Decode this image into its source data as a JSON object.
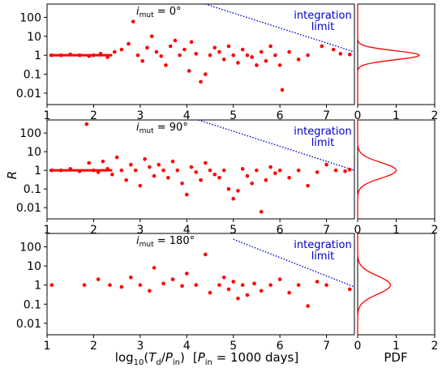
{
  "figure": {
    "xlabel": "log₁₀(T_d/P_in)  [P_in = 1000 days]",
    "xlabel_parts": {
      "log": "log",
      "sub10": "10",
      "open": "(",
      "T": "T",
      "d": "d",
      "slash": "/",
      "P": "P",
      "in": "in",
      "close": ")",
      "bracket": "[",
      "P2": "P",
      "in2": "in",
      "rest": " = 1000 days]"
    },
    "ylabel": "R",
    "pdf_label": "PDF",
    "integration_label_line1": "integration",
    "integration_label_line2": "limit",
    "colors": {
      "points": "#ff0000",
      "limit": "#0000cc",
      "pdf": "#ff0000"
    }
  },
  "chart_data": [
    {
      "type": "scatter",
      "panel": "top",
      "annotation": {
        "symbol": "i",
        "sub": "mut",
        "text": " = 0°"
      },
      "xlim": [
        1,
        7.6
      ],
      "ylim_log10": [
        -2.6,
        2.7
      ],
      "xticks": [
        "1",
        "2",
        "3",
        "4",
        "5",
        "6",
        "7"
      ],
      "yticks": [
        "100",
        "10",
        "1",
        "0.1",
        "0.01"
      ],
      "integration_limit": {
        "x": [
          4.4,
          7.6
        ],
        "y": [
          500,
          1.5
        ]
      },
      "points": [
        [
          1.1,
          1.0
        ],
        [
          1.3,
          1.0
        ],
        [
          1.5,
          1.1
        ],
        [
          1.7,
          1.0
        ],
        [
          1.9,
          0.9
        ],
        [
          2.0,
          1.0
        ],
        [
          2.15,
          1.2
        ],
        [
          2.3,
          0.8
        ],
        [
          2.45,
          1.5
        ],
        [
          2.6,
          2.0
        ],
        [
          2.75,
          4.0
        ],
        [
          2.85,
          60
        ],
        [
          2.95,
          1.0
        ],
        [
          3.05,
          0.5
        ],
        [
          3.15,
          2.5
        ],
        [
          3.25,
          10
        ],
        [
          3.35,
          1.5
        ],
        [
          3.45,
          0.9
        ],
        [
          3.55,
          0.3
        ],
        [
          3.65,
          3.0
        ],
        [
          3.75,
          6.0
        ],
        [
          3.85,
          1.0
        ],
        [
          3.95,
          2.0
        ],
        [
          4.05,
          0.15
        ],
        [
          4.1,
          5.0
        ],
        [
          4.2,
          1.2
        ],
        [
          4.3,
          0.04
        ],
        [
          4.4,
          0.1
        ],
        [
          4.5,
          1.0
        ],
        [
          4.6,
          2.5
        ],
        [
          4.7,
          1.5
        ],
        [
          4.8,
          0.6
        ],
        [
          4.9,
          3.0
        ],
        [
          5.0,
          1.0
        ],
        [
          5.1,
          0.4
        ],
        [
          5.2,
          2.0
        ],
        [
          5.3,
          1.0
        ],
        [
          5.4,
          0.8
        ],
        [
          5.5,
          0.3
        ],
        [
          5.6,
          1.5
        ],
        [
          5.7,
          0.5
        ],
        [
          5.8,
          3.0
        ],
        [
          5.9,
          1.0
        ],
        [
          6.0,
          0.3
        ],
        [
          6.05,
          0.015
        ],
        [
          6.2,
          1.5
        ],
        [
          6.4,
          0.6
        ],
        [
          6.6,
          1.0
        ],
        [
          6.9,
          3.0
        ],
        [
          7.15,
          2.0
        ],
        [
          7.3,
          1.2
        ],
        [
          7.5,
          1.1
        ]
      ],
      "pdf": {
        "xlim": [
          0,
          2
        ],
        "xticks": [
          "0",
          "1",
          "2"
        ],
        "peak": 1.6,
        "center_log10": 0.0,
        "sigma_log10": 0.24
      }
    },
    {
      "type": "scatter",
      "panel": "middle",
      "annotation": {
        "symbol": "i",
        "sub": "mut",
        "text": " = 90°"
      },
      "xlim": [
        1,
        7.6
      ],
      "ylim_log10": [
        -2.6,
        2.7
      ],
      "xticks": [
        "1",
        "2",
        "3",
        "4",
        "5",
        "6",
        "7"
      ],
      "yticks": [
        "100",
        "10",
        "1",
        "0.1",
        "0.01"
      ],
      "integration_limit": {
        "x": [
          4.25,
          7.6
        ],
        "y": [
          500,
          1.0
        ]
      },
      "points": [
        [
          1.1,
          1.0
        ],
        [
          1.3,
          1.0
        ],
        [
          1.5,
          1.2
        ],
        [
          1.7,
          0.9
        ],
        [
          1.85,
          300
        ],
        [
          1.9,
          2.5
        ],
        [
          2.0,
          1.0
        ],
        [
          2.1,
          0.8
        ],
        [
          2.2,
          3.0
        ],
        [
          2.3,
          1.2
        ],
        [
          2.4,
          0.6
        ],
        [
          2.5,
          5.0
        ],
        [
          2.6,
          1.0
        ],
        [
          2.7,
          0.3
        ],
        [
          2.8,
          2.0
        ],
        [
          2.9,
          1.0
        ],
        [
          3.0,
          0.15
        ],
        [
          3.1,
          4.0
        ],
        [
          3.2,
          1.5
        ],
        [
          3.3,
          0.5
        ],
        [
          3.4,
          2.0
        ],
        [
          3.5,
          1.0
        ],
        [
          3.6,
          0.4
        ],
        [
          3.7,
          3.0
        ],
        [
          3.8,
          1.0
        ],
        [
          3.9,
          0.2
        ],
        [
          4.0,
          0.05
        ],
        [
          4.1,
          1.5
        ],
        [
          4.2,
          0.8
        ],
        [
          4.3,
          0.3
        ],
        [
          4.4,
          2.5
        ],
        [
          4.5,
          1.0
        ],
        [
          4.6,
          0.6
        ],
        [
          4.7,
          0.4
        ],
        [
          4.8,
          1.0
        ],
        [
          4.9,
          0.1
        ],
        [
          5.0,
          0.03
        ],
        [
          5.1,
          0.08
        ],
        [
          5.2,
          1.2
        ],
        [
          5.3,
          0.5
        ],
        [
          5.4,
          0.2
        ],
        [
          5.5,
          1.0
        ],
        [
          5.6,
          0.006
        ],
        [
          5.7,
          0.3
        ],
        [
          5.8,
          1.5
        ],
        [
          5.9,
          0.7
        ],
        [
          6.0,
          1.0
        ],
        [
          6.2,
          0.4
        ],
        [
          6.4,
          1.0
        ],
        [
          6.6,
          0.15
        ],
        [
          6.8,
          0.8
        ],
        [
          7.0,
          2.0
        ],
        [
          7.2,
          1.0
        ],
        [
          7.4,
          0.9
        ],
        [
          7.5,
          1.1
        ]
      ],
      "pdf": {
        "xlim": [
          0,
          2
        ],
        "xticks": [
          "0",
          "1",
          "2"
        ],
        "peak": 1.0,
        "center_log10": 0.0,
        "sigma_log10": 0.42
      }
    },
    {
      "type": "scatter",
      "panel": "bottom",
      "annotation": {
        "symbol": "i",
        "sub": "mut",
        "text": " = 180°"
      },
      "xlim": [
        1,
        7.6
      ],
      "ylim_log10": [
        -2.6,
        2.7
      ],
      "xticks": [
        "1",
        "2",
        "3",
        "4",
        "5",
        "6",
        "7"
      ],
      "yticks": [
        "100",
        "10",
        "1",
        "0.1",
        "0.01"
      ],
      "integration_limit": {
        "x": [
          5.0,
          7.6
        ],
        "y": [
          250,
          0.8
        ]
      },
      "points": [
        [
          1.1,
          1.0
        ],
        [
          1.8,
          1.0
        ],
        [
          2.1,
          2.0
        ],
        [
          2.35,
          1.0
        ],
        [
          2.6,
          0.8
        ],
        [
          2.8,
          2.5
        ],
        [
          3.0,
          1.0
        ],
        [
          3.2,
          0.5
        ],
        [
          3.3,
          8.0
        ],
        [
          3.5,
          1.2
        ],
        [
          3.7,
          2.0
        ],
        [
          3.9,
          0.9
        ],
        [
          4.0,
          4.0
        ],
        [
          4.2,
          1.0
        ],
        [
          4.4,
          40
        ],
        [
          4.5,
          0.4
        ],
        [
          4.7,
          1.0
        ],
        [
          4.8,
          2.5
        ],
        [
          4.9,
          0.6
        ],
        [
          5.0,
          1.5
        ],
        [
          5.1,
          0.2
        ],
        [
          5.2,
          1.0
        ],
        [
          5.3,
          0.3
        ],
        [
          5.45,
          1.2
        ],
        [
          5.6,
          0.5
        ],
        [
          5.8,
          1.0
        ],
        [
          6.0,
          2.0
        ],
        [
          6.2,
          0.4
        ],
        [
          6.4,
          1.0
        ],
        [
          6.6,
          0.08
        ],
        [
          6.8,
          1.5
        ],
        [
          7.0,
          1.0
        ],
        [
          7.5,
          0.6
        ]
      ],
      "pdf": {
        "xlim": [
          0,
          2
        ],
        "xticks": [
          "0",
          "1",
          "2"
        ],
        "peak": 0.85,
        "center_log10": 0.0,
        "sigma_log10": 0.48
      }
    }
  ]
}
